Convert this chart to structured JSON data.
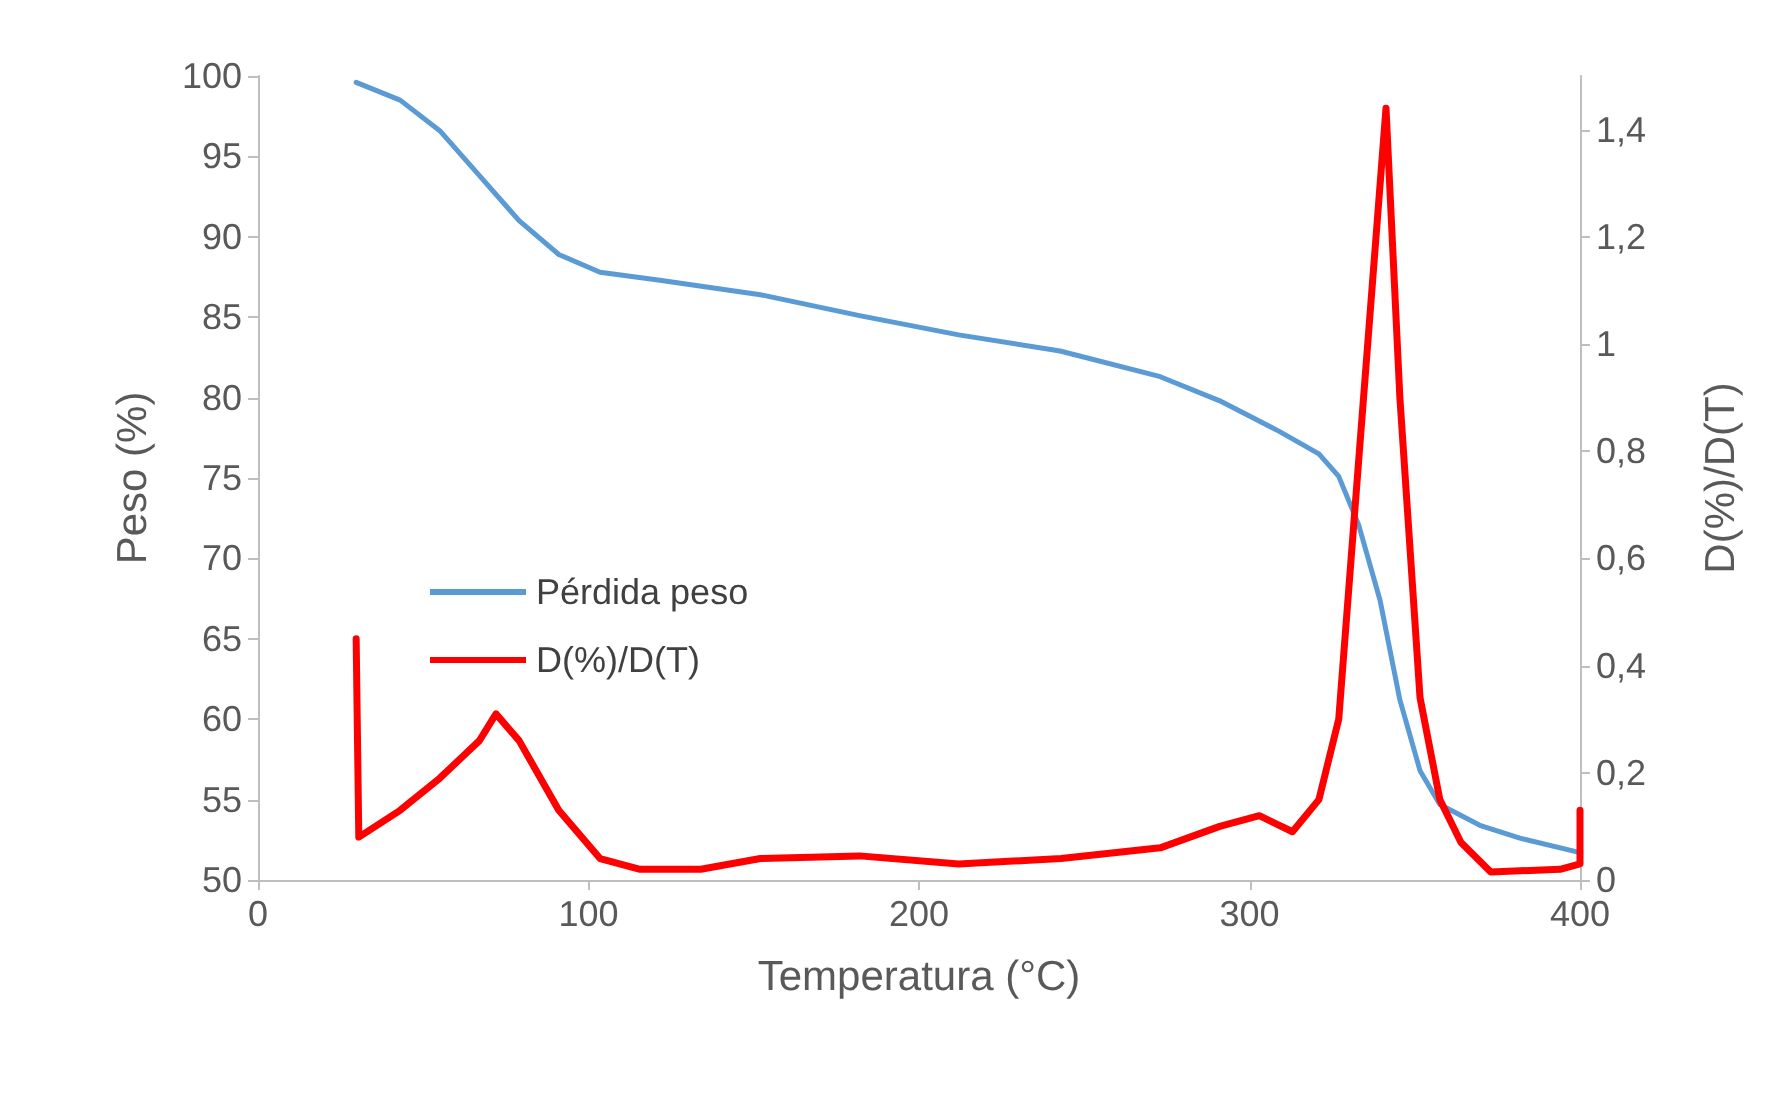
{
  "chart_data": {
    "type": "line",
    "xlabel": "Temperatura (°C)",
    "ylabel": "Peso (%)",
    "y2label": "D(%)/D(T)",
    "xlim": [
      0,
      400
    ],
    "xticks": [
      0,
      100,
      200,
      300,
      400
    ],
    "ylim": [
      50,
      100
    ],
    "yticks": [
      50,
      55,
      60,
      65,
      70,
      75,
      80,
      85,
      90,
      95,
      100
    ],
    "y2lim": [
      0,
      1.5
    ],
    "y2ticks": [
      {
        "value": 0,
        "label": "0"
      },
      {
        "value": 0.2,
        "label": "0,2"
      },
      {
        "value": 0.4,
        "label": "0,4"
      },
      {
        "value": 0.6,
        "label": "0,6"
      },
      {
        "value": 0.8,
        "label": "0,8"
      },
      {
        "value": 1,
        "label": "1"
      },
      {
        "value": 1.2,
        "label": "1,2"
      },
      {
        "value": 1.4,
        "label": "1,4"
      }
    ],
    "grid": false,
    "legend": "left",
    "marker": "none",
    "line_style": "solid",
    "series": [
      {
        "name": "Pérdida peso",
        "color": "#5b9bd5",
        "x": [
          29.7,
          43,
          55,
          67,
          79,
          91,
          103.5,
          121.6,
          152,
          182,
          212,
          242.7,
          273,
          291,
          309,
          321,
          327,
          333,
          339.5,
          345.5,
          351.6,
          357.6,
          369.7,
          381.8,
          400
        ],
        "values": [
          99.6,
          98.5,
          96.6,
          93.8,
          91.0,
          88.9,
          87.8,
          87.3,
          86.4,
          85.1,
          83.9,
          82.9,
          81.3,
          79.8,
          77.9,
          76.5,
          75.1,
          72.1,
          67.4,
          61.2,
          56.8,
          54.7,
          53.4,
          52.6,
          51.7
        ]
      },
      {
        "name": "D(%)/D(T)",
        "color": "#ff0000",
        "axis": "y2",
        "x": [
          29.7,
          30.5,
          43,
          55,
          67,
          72,
          79,
          91,
          103.5,
          115.6,
          134,
          152,
          182,
          212,
          243,
          273,
          291,
          303,
          313,
          321,
          327,
          333,
          341.3,
          345.5,
          351.6,
          357.6,
          364,
          373,
          394,
          400,
          400
        ],
        "values": [
          0.45,
          0.08,
          0.13,
          0.19,
          0.26,
          0.31,
          0.26,
          0.13,
          0.04,
          0.02,
          0.02,
          0.04,
          0.045,
          0.03,
          0.04,
          0.06,
          0.1,
          0.12,
          0.09,
          0.15,
          0.3,
          0.78,
          1.44,
          0.9,
          0.34,
          0.15,
          0.07,
          0.015,
          0.02,
          0.03,
          0.13
        ]
      }
    ]
  }
}
